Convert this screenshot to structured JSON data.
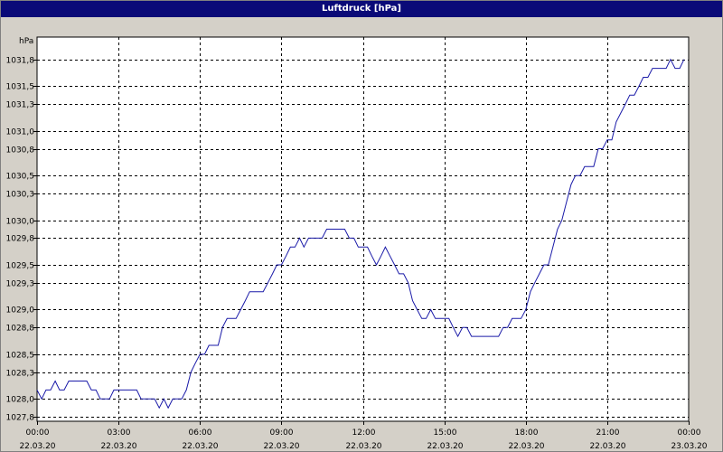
{
  "window": {
    "title": "Luftdruck [hPa]"
  },
  "colors": {
    "line": "#1a1aa8",
    "grid": "#000000",
    "plot_bg": "#ffffff",
    "frame_bg": "#d4d0c8",
    "title_bg": "#0a0a78"
  },
  "chart_data": {
    "type": "line",
    "title": "Luftdruck [hPa]",
    "ylabel": "hPa",
    "xlabel": "",
    "ylim": [
      1027.75,
      1032.05
    ],
    "xlim_hours": [
      0,
      24
    ],
    "grid": true,
    "y_ticks": [
      {
        "value": 1027.8,
        "label": "1027,8"
      },
      {
        "value": 1028.0,
        "label": "1028,0"
      },
      {
        "value": 1028.3,
        "label": "1028,3"
      },
      {
        "value": 1028.5,
        "label": "1028,5"
      },
      {
        "value": 1028.8,
        "label": "1028,8"
      },
      {
        "value": 1029.0,
        "label": "1029,0"
      },
      {
        "value": 1029.3,
        "label": "1029,3"
      },
      {
        "value": 1029.5,
        "label": "1029,5"
      },
      {
        "value": 1029.8,
        "label": "1029,8"
      },
      {
        "value": 1030.0,
        "label": "1030,0"
      },
      {
        "value": 1030.3,
        "label": "1030,3"
      },
      {
        "value": 1030.5,
        "label": "1030,5"
      },
      {
        "value": 1030.8,
        "label": "1030,8"
      },
      {
        "value": 1031.0,
        "label": "1031,0"
      },
      {
        "value": 1031.3,
        "label": "1031,3"
      },
      {
        "value": 1031.5,
        "label": "1031,5"
      },
      {
        "value": 1031.8,
        "label": "1031,8"
      }
    ],
    "x_ticks": [
      {
        "hour": 0,
        "time": "00:00",
        "date": "22.03.20"
      },
      {
        "hour": 3,
        "time": "03:00",
        "date": "22.03.20"
      },
      {
        "hour": 6,
        "time": "06:00",
        "date": "22.03.20"
      },
      {
        "hour": 9,
        "time": "09:00",
        "date": "22.03.20"
      },
      {
        "hour": 12,
        "time": "12:00",
        "date": "22.03.20"
      },
      {
        "hour": 15,
        "time": "15:00",
        "date": "22.03.20"
      },
      {
        "hour": 18,
        "time": "18:00",
        "date": "22.03.20"
      },
      {
        "hour": 21,
        "time": "21:00",
        "date": "22.03.20"
      },
      {
        "hour": 24,
        "time": "00:00",
        "date": "23.03.20"
      }
    ],
    "series": [
      {
        "x": [
          0,
          0.17,
          0.33,
          0.5,
          0.67,
          0.83,
          1,
          1.17,
          1.33,
          1.5,
          1.67,
          1.83,
          2,
          2.17,
          2.33,
          2.5,
          2.67,
          2.83,
          3,
          3.17,
          3.33,
          3.5,
          3.67,
          3.83,
          4,
          4.17,
          4.33,
          4.5,
          4.67,
          4.83,
          5,
          5.17,
          5.33,
          5.5,
          5.67,
          5.83,
          6,
          6.17,
          6.33,
          6.5,
          6.67,
          6.83,
          7,
          7.17,
          7.33,
          7.5,
          7.67,
          7.83,
          8,
          8.17,
          8.33,
          8.5,
          8.67,
          8.83,
          9,
          9.17,
          9.33,
          9.5,
          9.67,
          9.83,
          10,
          10.17,
          10.33,
          10.5,
          10.67,
          10.83,
          11,
          11.17,
          11.33,
          11.5,
          11.67,
          11.83,
          12,
          12.17,
          12.33,
          12.5,
          12.67,
          12.83,
          13,
          13.17,
          13.33,
          13.5,
          13.67,
          13.83,
          14,
          14.17,
          14.33,
          14.5,
          14.67,
          14.83,
          15,
          15.17,
          15.33,
          15.5,
          15.67,
          15.83,
          16,
          16.17,
          16.33,
          16.5,
          16.67,
          16.83,
          17,
          17.17,
          17.33,
          17.5,
          17.67,
          17.83,
          18,
          18.17,
          18.33,
          18.5,
          18.67,
          18.83,
          19,
          19.17,
          19.33,
          19.5,
          19.67,
          19.83,
          20,
          20.17,
          20.33,
          20.5,
          20.67,
          20.83,
          21,
          21.17,
          21.33,
          21.5,
          21.67,
          21.83,
          22,
          22.17,
          22.33,
          22.5,
          22.67,
          22.83,
          23,
          23.17,
          23.33,
          23.5,
          23.67,
          23.83
        ],
        "y": [
          1028.1,
          1028.0,
          1028.1,
          1028.1,
          1028.2,
          1028.1,
          1028.1,
          1028.2,
          1028.2,
          1028.2,
          1028.2,
          1028.2,
          1028.1,
          1028.1,
          1028.0,
          1028.0,
          1028.0,
          1028.1,
          1028.1,
          1028.1,
          1028.1,
          1028.1,
          1028.1,
          1028.0,
          1028.0,
          1028.0,
          1028.0,
          1027.9,
          1028.0,
          1027.9,
          1028.0,
          1028.0,
          1028.0,
          1028.1,
          1028.3,
          1028.4,
          1028.5,
          1028.5,
          1028.6,
          1028.6,
          1028.6,
          1028.8,
          1028.9,
          1028.9,
          1028.9,
          1029.0,
          1029.1,
          1029.2,
          1029.2,
          1029.2,
          1029.2,
          1029.3,
          1029.4,
          1029.5,
          1029.5,
          1029.6,
          1029.7,
          1029.7,
          1029.8,
          1029.7,
          1029.8,
          1029.8,
          1029.8,
          1029.8,
          1029.9,
          1029.9,
          1029.9,
          1029.9,
          1029.9,
          1029.8,
          1029.8,
          1029.7,
          1029.7,
          1029.7,
          1029.6,
          1029.5,
          1029.6,
          1029.7,
          1029.6,
          1029.5,
          1029.4,
          1029.4,
          1029.3,
          1029.1,
          1029.0,
          1028.9,
          1028.9,
          1029.0,
          1028.9,
          1028.9,
          1028.9,
          1028.9,
          1028.8,
          1028.7,
          1028.8,
          1028.8,
          1028.7,
          1028.7,
          1028.7,
          1028.7,
          1028.7,
          1028.7,
          1028.7,
          1028.8,
          1028.8,
          1028.9,
          1028.9,
          1028.9,
          1029.0,
          1029.2,
          1029.3,
          1029.4,
          1029.5,
          1029.5,
          1029.7,
          1029.9,
          1030.0,
          1030.2,
          1030.4,
          1030.5,
          1030.5,
          1030.6,
          1030.6,
          1030.6,
          1030.8,
          1030.8,
          1030.9,
          1030.9,
          1031.1,
          1031.2,
          1031.3,
          1031.4,
          1031.4,
          1031.5,
          1031.6,
          1031.6,
          1031.7,
          1031.7,
          1031.7,
          1031.7,
          1031.8,
          1031.7,
          1031.7,
          1031.8
        ]
      }
    ]
  }
}
